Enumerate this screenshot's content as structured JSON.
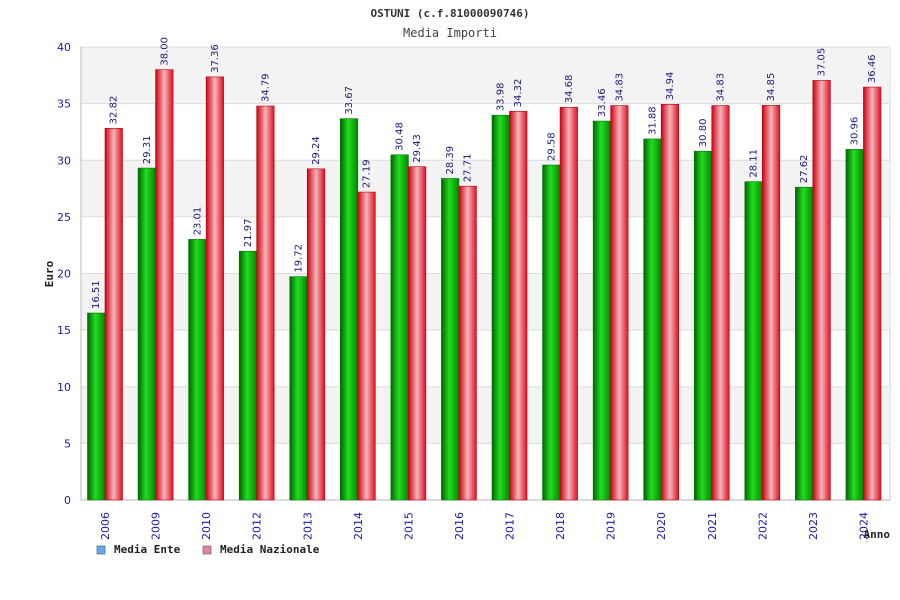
{
  "chart_data": {
    "type": "bar",
    "title": "OSTUNI (c.f.81000090746)",
    "subtitle": "Media Importi",
    "ylabel": "Euro",
    "xlabel": "Anno",
    "ylim": [
      0,
      40
    ],
    "yticks": [
      0,
      5,
      10,
      15,
      20,
      25,
      30,
      35,
      40
    ],
    "categories": [
      "2006",
      "2009",
      "2010",
      "2012",
      "2013",
      "2014",
      "2015",
      "2016",
      "2017",
      "2018",
      "2019",
      "2020",
      "2021",
      "2022",
      "2023",
      "2024"
    ],
    "series": [
      {
        "name": "Media Ente",
        "color": "#00b400",
        "legend_color": "#66aaee",
        "values": [
          16.51,
          29.31,
          23.01,
          21.97,
          19.72,
          33.67,
          30.48,
          28.39,
          33.98,
          29.58,
          33.46,
          31.88,
          30.8,
          28.11,
          27.62,
          30.96
        ],
        "labels": [
          "16.51",
          "29.31",
          "23.01",
          "21.97",
          "19.72",
          "33.67",
          "30.48",
          "28.39",
          "33.98",
          "29.58",
          "33.46",
          "31.88",
          "30.80",
          "28.11",
          "27.62",
          "30.96"
        ]
      },
      {
        "name": "Media Nazionale",
        "color": "#e8202c",
        "legend_color": "#dd88aa",
        "values": [
          32.82,
          38.0,
          37.36,
          34.79,
          29.24,
          27.19,
          29.43,
          27.71,
          34.32,
          34.68,
          34.83,
          34.94,
          34.83,
          34.85,
          37.05,
          36.46
        ],
        "labels": [
          "32.82",
          "38.00",
          "37.36",
          "34.79",
          "29.24",
          "27.19",
          "29.43",
          "27.71",
          "34.32",
          "34.68",
          "34.83",
          "34.94",
          "34.83",
          "34.85",
          "37.05",
          "36.46"
        ]
      }
    ],
    "grid": true,
    "legend_position": "bottom-left"
  }
}
